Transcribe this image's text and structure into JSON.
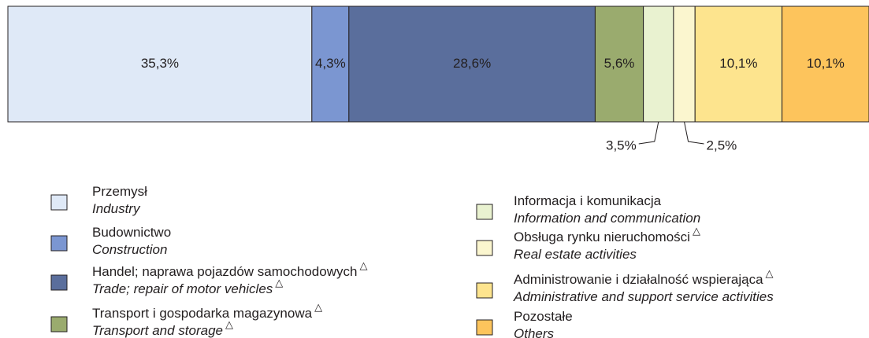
{
  "chart_data": {
    "type": "stacked_bar_100",
    "footnote_mark": "△",
    "series": [
      {
        "name": "Przemysł",
        "name_en": "Industry",
        "color": "#dfe9f7",
        "values": [
          35.3
        ],
        "value_labels": [
          "35,3%"
        ],
        "pl_mark": false,
        "en_mark": false
      },
      {
        "name": "Budownictwo",
        "name_en": "Construction",
        "color": "#7b96d1",
        "values": [
          4.3
        ],
        "value_labels": [
          "4,3%"
        ],
        "pl_mark": false,
        "en_mark": false
      },
      {
        "name": "Handel; naprawa pojazdów samochodowych",
        "name_en": "Trade; repair of motor vehicles",
        "color": "#5a6e9c",
        "values": [
          28.6
        ],
        "value_labels": [
          "28,6%"
        ],
        "pl_mark": true,
        "en_mark": true
      },
      {
        "name": "Transport i gospodarka magazynowa",
        "name_en": "Transport and storage",
        "color": "#9aab6e",
        "values": [
          5.6
        ],
        "value_labels": [
          "5,6%"
        ],
        "pl_mark": true,
        "en_mark": true
      },
      {
        "name": "Informacja i komunikacja",
        "name_en": "Information and communication",
        "color": "#e9f2d0",
        "values": [
          3.5
        ],
        "value_labels": [
          "3,5%"
        ],
        "pl_mark": false,
        "en_mark": false
      },
      {
        "name": "Obsługa rynku nieruchomości",
        "name_en": "Real estate activities",
        "color": "#fbf6cf",
        "values": [
          2.5
        ],
        "value_labels": [
          "2,5%"
        ],
        "pl_mark": true,
        "en_mark": false
      },
      {
        "name": "Administrowanie i działalność wspierająca",
        "name_en": "Administrative and support service activities",
        "color": "#fde48e",
        "values": [
          10.1
        ],
        "value_labels": [
          "10,1%"
        ],
        "pl_mark": true,
        "en_mark": false
      },
      {
        "name": "Pozostałe",
        "name_en": "Others",
        "color": "#fdc45c",
        "values": [
          10.1
        ],
        "value_labels": [
          "10,1%"
        ],
        "pl_mark": false,
        "en_mark": false
      }
    ]
  }
}
